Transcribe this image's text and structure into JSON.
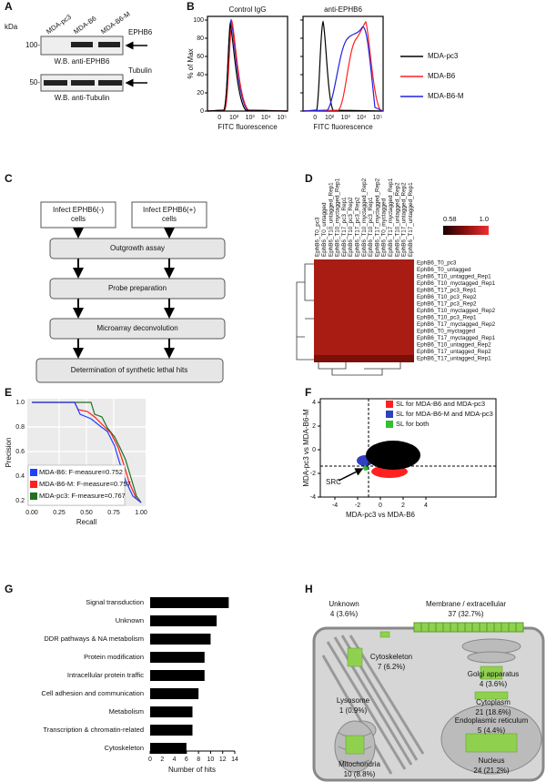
{
  "a": {
    "label": "A",
    "kda": "kDa",
    "lanes": [
      "MDA-pc3",
      "MDA-B6",
      "MDA-B6-M"
    ],
    "top_blot": {
      "protein": "EPHB6",
      "marker": "100-",
      "caption": "W.B. anti-EPHB6"
    },
    "bottom_blot": {
      "protein": "Tubulin",
      "marker": "50-",
      "caption": "W.B. anti-Tubulin"
    }
  },
  "b": {
    "label": "B",
    "plots": [
      "Control IgG",
      "anti-EPHB6"
    ],
    "y_label": "% of Max",
    "yticks": [
      0,
      20,
      40,
      60,
      80,
      100
    ],
    "x_tick_labels": [
      "0",
      "10²",
      "10³",
      "10⁴",
      "10⁵"
    ],
    "x_label": "FITC fluorescence",
    "legend": [
      {
        "name": "MDA-pc3",
        "color": "#000000"
      },
      {
        "name": "MDA-B6",
        "color": "#ff2020"
      },
      {
        "name": "MDA-B6-M",
        "color": "#2020e0"
      }
    ]
  },
  "c": {
    "label": "C",
    "infect": [
      "Infect  EPHB6(-)\ncells",
      "Infect  EPHB6(+)\ncells"
    ],
    "steps": [
      "Outgrowth assay",
      "Probe preparation",
      "Microarray deconvolution",
      "Determination of synthetic lethal hits"
    ]
  },
  "d": {
    "label": "D",
    "colorbar": [
      "0.58",
      "1.0"
    ],
    "columns": [
      "EphB6_T0_pc3",
      "EphB6_T0_untagged",
      "EphB6_T10_untagged_Rep1",
      "EphB6_T10_myctagged_Rep1",
      "EphB6_T17_pc3_Rep1",
      "EphB6_T10_pc3_Rep2",
      "EphB6_T17_pc3_Rep2",
      "EphB6_T10_myctagged_Rep2",
      "EphB6_T10_pc3_Rep1",
      "EphB6_T17_myctagged_Rep2",
      "EphB6_T0_myctagged",
      "EphB6_T17_myctagged_Rep1",
      "EphB6_T10_untagged_Rep2",
      "EphB6_T17_untagged_Rep2",
      "EphB6_T17_untagged_Rep1"
    ],
    "rows": [
      "EphB6_T0_pc3",
      "EphB6_T0_untagged",
      "EphB6_T10_untagged_Rep1",
      "EphB6_T10_myctagged_Rep1",
      "EphB6_T17_pc3_Rep1",
      "EphB6_T10_pc3_Rep2",
      "EphB6_T17_pc3_Rep2",
      "EphB6_T10_myctagged_Rep2",
      "EphB6_T10_pc3_Rep1",
      "EphB6_T17_myctagged_Rep2",
      "EphB6_T0_myctagged",
      "EphB6_T17_myctagged_Rep1",
      "EphB6_T10_untagged_Rep2",
      "EphB6_T17_untagged_Rep2",
      "EphB6_T17_untagged_Rep1"
    ]
  },
  "e": {
    "label": "E",
    "y_label": "Precision",
    "x_label": "Recall",
    "y_tick_labels": [
      "0.2",
      "0.4",
      "0.6",
      "0.8",
      "1.0"
    ],
    "x_tick_labels": [
      "0.00",
      "0.25",
      "0.50",
      "0.75",
      "1.00"
    ],
    "legend": [
      {
        "name": "MDA-B6: F-measure=0.752",
        "color": "#2040ff"
      },
      {
        "name": "MDA-B6-M: F-measure=0.757",
        "color": "#ff2020"
      },
      {
        "name": "MDA-pc3: F-measure=0.767",
        "color": "#207020"
      }
    ]
  },
  "f": {
    "label": "F",
    "y_label": "MDA-pc3 vs MDA-B6-M",
    "x_label": "MDA-pc3 vs MDA-B6",
    "xticks": [
      -4,
      -2,
      0,
      2,
      4
    ],
    "yticks": [
      -4,
      -2,
      0,
      2,
      4
    ],
    "annotation": "SRC",
    "legend": [
      {
        "name": "SL for MDA-B6 and MDA-pc3",
        "color": "#ff2020"
      },
      {
        "name": "SL for MDA-B6-M and MDA-pc3",
        "color": "#3040c0"
      },
      {
        "name": "SL for both",
        "color": "#30c030"
      }
    ]
  },
  "g": {
    "label": "G",
    "chart": {
      "type": "bar",
      "categories": [
        "Signal transduction",
        "Unknown",
        "DDR pathways & NA metabolism",
        "Protein modification",
        "Intracellular protein traffic",
        "Cell adhesion and communication",
        "Metabolism",
        "Transcription & chromatin-related",
        "Cytoskeleton"
      ],
      "values": [
        13,
        11,
        10,
        9,
        9,
        8,
        7,
        7,
        6
      ],
      "color": "#000000",
      "xlim": [
        0,
        14
      ],
      "xticks": [
        0,
        2,
        4,
        6,
        8,
        10,
        12,
        14
      ],
      "x_label": "Number of hits"
    }
  },
  "h": {
    "label": "H",
    "compartments": [
      {
        "name": "Unknown",
        "count": "4 (3.6%)"
      },
      {
        "name": "Membrane / extracellular",
        "count": "37 (32.7%)"
      },
      {
        "name": "Cytoskeleton",
        "count": "7 (6.2%)"
      },
      {
        "name": "Golgi apparatus",
        "count": "4 (3.6%)"
      },
      {
        "name": "Lysosome",
        "count": "1 (0.9%)"
      },
      {
        "name": "Cytoplasm",
        "count": "21 (18.6%)"
      },
      {
        "name": "Endoplasmic reticulum",
        "count": "5 (4.4%)"
      },
      {
        "name": "Nucleus",
        "count": "24 (21.2%)"
      },
      {
        "name": "Mitochondria",
        "count": "10 (8.8%)"
      }
    ]
  }
}
